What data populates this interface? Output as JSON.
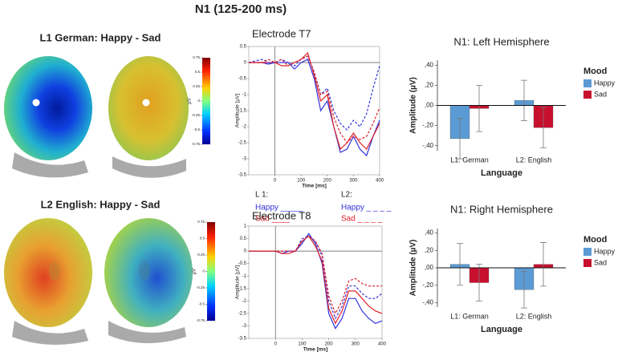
{
  "title": "N1 (125-200 ms)",
  "topomaps": [
    {
      "label": "L1 German: Happy - Sad",
      "colorbar": {
        "unit": "µV",
        "ticks": [
          0.75,
          0.5,
          0.25,
          0,
          -0.25,
          -0.5,
          -0.75
        ]
      }
    },
    {
      "label": "L2 English: Happy - Sad",
      "colorbar": {
        "unit": "µV",
        "ticks": [
          0.75,
          0.5,
          0.25,
          0,
          -0.25,
          -0.5,
          -0.75
        ]
      }
    }
  ],
  "erp_legend": {
    "groups": [
      {
        "label": "L 1:",
        "items": [
          {
            "text": "Happy _____",
            "color": "#3333dd"
          },
          {
            "text": "Sad ____",
            "color": "#e0202a"
          }
        ]
      },
      {
        "label": "L2:",
        "items": [
          {
            "text": "Happy _ _ _ _",
            "color": "#3333dd"
          },
          {
            "text": "Sad _ _ _ _",
            "color": "#e0202a"
          }
        ]
      }
    ]
  },
  "chart_data": [
    {
      "type": "line",
      "title": "Electrode T7",
      "x_label": "Time [ms]",
      "y_label": "Amplitude [µV]",
      "x": [
        -100,
        -75,
        -50,
        -25,
        0,
        25,
        50,
        75,
        100,
        125,
        150,
        175,
        200,
        225,
        250,
        275,
        300,
        325,
        350,
        375,
        400
      ],
      "xlim": [
        -100,
        400
      ],
      "xticks": [
        0,
        100,
        200,
        300,
        400
      ],
      "ylim": [
        -3.5,
        0.5
      ],
      "yticks": [
        0.5,
        0,
        -0.5,
        -1,
        -1.5,
        -2,
        -2.5,
        -3,
        -3.5
      ],
      "series": [
        {
          "color": "#3333dd",
          "dashed": false,
          "values": [
            0,
            0,
            0,
            -0.05,
            0,
            0,
            0,
            -0.2,
            0,
            0.1,
            -0.5,
            -1.5,
            -1.2,
            -2,
            -2.8,
            -2.7,
            -2.3,
            -2.7,
            -2.9,
            -2.3,
            -1.8
          ]
        },
        {
          "color": "#e0202a",
          "dashed": false,
          "values": [
            0,
            0,
            0,
            0,
            0,
            -0.1,
            -0.1,
            0,
            0.1,
            0.3,
            -0.4,
            -1.2,
            -1,
            -2,
            -2.7,
            -2.5,
            -2.2,
            -2.5,
            -2.7,
            -2.3,
            -1.9
          ]
        },
        {
          "color": "#3333dd",
          "dashed": true,
          "values": [
            0,
            0.05,
            0.1,
            0,
            0,
            0.1,
            0,
            -0.1,
            0.1,
            0.2,
            -0.3,
            -1,
            -0.8,
            -1.5,
            -1.9,
            -2.1,
            -1.8,
            -2,
            -1.6,
            -0.8,
            -0.1
          ]
        },
        {
          "color": "#e0202a",
          "dashed": true,
          "values": [
            0,
            0,
            0,
            0.1,
            0,
            0.1,
            -0.1,
            0,
            0.1,
            0.2,
            -0.3,
            -1,
            -0.9,
            -1.7,
            -2.2,
            -2.5,
            -2.3,
            -2.4,
            -2.3,
            -1.9,
            -1.4
          ]
        }
      ]
    },
    {
      "type": "line",
      "title": "Electrode T8",
      "x_label": "Time [ms]",
      "y_label": "Amplitude [µV]",
      "x": [
        -100,
        -75,
        -50,
        -25,
        0,
        25,
        50,
        75,
        100,
        125,
        150,
        175,
        200,
        225,
        250,
        275,
        300,
        325,
        350,
        375,
        400
      ],
      "xlim": [
        -100,
        400
      ],
      "xticks": [
        0,
        100,
        200,
        300,
        400
      ],
      "ylim": [
        -3.5,
        1
      ],
      "yticks": [
        1,
        0.5,
        0,
        -0.5,
        -1,
        -1.5,
        -2,
        -2.5,
        -3,
        -3.5
      ],
      "series": [
        {
          "color": "#3333dd",
          "dashed": false,
          "values": [
            0,
            0,
            0,
            0,
            0,
            -0.1,
            0,
            0,
            0.3,
            0.7,
            0.3,
            -0.5,
            -2.5,
            -3.1,
            -2.7,
            -1.9,
            -1.9,
            -2.4,
            -2.7,
            -2.9,
            -2.8
          ]
        },
        {
          "color": "#e0202a",
          "dashed": false,
          "values": [
            0,
            0,
            0,
            0,
            0,
            -0.1,
            -0.1,
            0,
            0.4,
            0.6,
            0.2,
            -0.4,
            -2.3,
            -2.9,
            -2.4,
            -1.6,
            -1.6,
            -1.9,
            -2.2,
            -2.4,
            -2.5
          ]
        },
        {
          "color": "#3333dd",
          "dashed": true,
          "values": [
            0,
            0,
            0,
            0,
            0,
            0,
            0,
            0,
            0.5,
            0.6,
            0.4,
            -0.2,
            -2,
            -2.7,
            -2.2,
            -1.4,
            -1.4,
            -1.7,
            -1.9,
            -1.9,
            -1.7
          ]
        },
        {
          "color": "#e0202a",
          "dashed": true,
          "values": [
            0,
            0,
            0,
            0,
            0,
            0,
            0,
            0,
            0.4,
            0.6,
            0.4,
            -0.1,
            -1.8,
            -2.5,
            -2,
            -1.2,
            -1.1,
            -1.3,
            -1.4,
            -1.4,
            -1.4
          ]
        }
      ]
    },
    {
      "type": "bar",
      "title": "N1: Left Hemisphere",
      "y_label": "Amplitude (µV)",
      "x_label": "Language",
      "legend_title": "Mood",
      "categories": [
        "L1: German",
        "L2: English"
      ],
      "ylim": [
        -0.45,
        0.45
      ],
      "yticks": [
        {
          "value": 0.4,
          "label": ",40"
        },
        {
          "value": 0.2,
          "label": ",20"
        },
        {
          "value": 0,
          "label": ",00"
        },
        {
          "value": -0.2,
          "label": "-,20"
        },
        {
          "value": -0.4,
          "label": "-,40"
        }
      ],
      "series": [
        {
          "name": "Happy",
          "color": "#5b9bd5",
          "values": [
            -0.33,
            0.05
          ],
          "errors": [
            0.2,
            0.2
          ]
        },
        {
          "name": "Sad",
          "color": "#c8102e",
          "values": [
            -0.03,
            -0.22
          ],
          "errors": [
            0.23,
            0.2
          ]
        }
      ]
    },
    {
      "type": "bar",
      "title": "N1: Right Hemisphere",
      "y_label": "Amplitude (µV)",
      "x_label": "Language",
      "legend_title": "Mood",
      "categories": [
        "L1: German",
        "L2: English"
      ],
      "ylim": [
        -0.45,
        0.45
      ],
      "yticks": [
        {
          "value": 0.4,
          "label": ",40"
        },
        {
          "value": 0.2,
          "label": ",20"
        },
        {
          "value": 0,
          "label": ",00"
        },
        {
          "value": -0.2,
          "label": "-,20"
        },
        {
          "value": -0.4,
          "label": "-,40"
        }
      ],
      "series": [
        {
          "name": "Happy",
          "color": "#5b9bd5",
          "values": [
            0.04,
            -0.25
          ],
          "errors": [
            0.24,
            0.21
          ]
        },
        {
          "name": "Sad",
          "color": "#c8102e",
          "values": [
            -0.17,
            0.04
          ],
          "errors": [
            0.21,
            0.25
          ]
        }
      ]
    }
  ]
}
